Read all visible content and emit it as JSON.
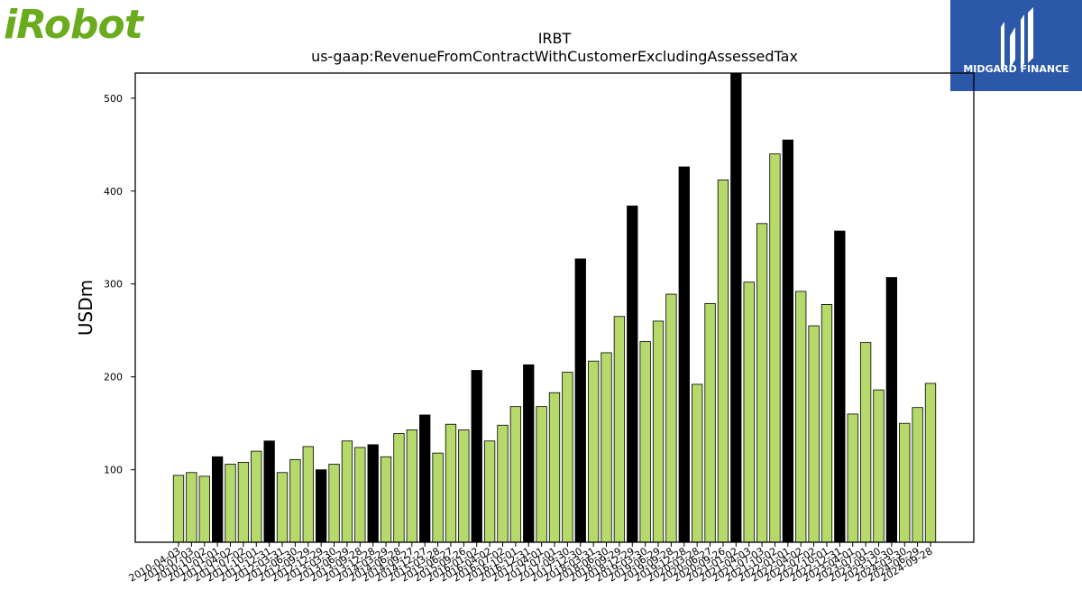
{
  "logos": {
    "left": "iRobot",
    "right": "MIDGARD FINANCE"
  },
  "colors": {
    "bar_fill": "#b5d96a",
    "highlight_fill": "#000000",
    "left_logo": "#6aac1e",
    "right_logo_bg": "#2b58a8"
  },
  "chart_data": {
    "type": "bar",
    "title": "IRBT",
    "subtitle": "us-gaap:RevenueFromContractWithCustomerExcludingAssessedTax",
    "xlabel": "",
    "ylabel": "USDm",
    "ylim": [
      22,
      527
    ],
    "yticks": [
      100,
      200,
      300,
      400,
      500
    ],
    "grid": false,
    "categories": [
      "2010-04-03",
      "2010-07-03",
      "2010-10-02",
      "2011-01-01",
      "2011-04-02",
      "2011-07-02",
      "2011-10-01",
      "2011-12-31",
      "2012-03-31",
      "2012-06-30",
      "2012-09-29",
      "2012-12-29",
      "2013-03-30",
      "2013-06-29",
      "2013-09-28",
      "2013-12-28",
      "2014-03-29",
      "2014-06-28",
      "2014-09-27",
      "2014-12-27",
      "2015-03-28",
      "2015-06-27",
      "2015-09-26",
      "2016-01-02",
      "2016-04-02",
      "2016-07-02",
      "2016-10-01",
      "2016-12-31",
      "2017-04-01",
      "2017-07-01",
      "2017-09-30",
      "2017-12-30",
      "2018-03-31",
      "2018-06-30",
      "2018-09-29",
      "2018-12-29",
      "2019-03-30",
      "2019-06-29",
      "2019-09-28",
      "2019-12-28",
      "2020-03-28",
      "2020-06-27",
      "2020-09-26",
      "2021-01-02",
      "2021-04-03",
      "2021-07-03",
      "2021-10-02",
      "2022-01-01",
      "2022-04-02",
      "2022-07-02",
      "2022-10-01",
      "2022-12-31",
      "2023-04-01",
      "2023-07-01",
      "2023-09-30",
      "2023-12-30",
      "2024-03-30",
      "2024-06-29",
      "2024-09-28"
    ],
    "values": [
      94,
      97,
      93,
      114,
      106,
      108,
      120,
      131,
      97,
      111,
      125,
      100,
      106,
      131,
      124,
      127,
      114,
      139,
      143,
      159,
      118,
      149,
      143,
      207,
      131,
      148,
      168,
      213,
      168,
      183,
      205,
      327,
      217,
      226,
      265,
      384,
      238,
      260,
      289,
      426,
      192,
      279,
      412,
      527,
      302,
      365,
      440,
      455,
      292,
      255,
      278,
      357,
      160,
      237,
      186,
      307,
      150,
      167,
      193
    ],
    "highlight": [
      false,
      false,
      false,
      true,
      false,
      false,
      false,
      true,
      false,
      false,
      false,
      true,
      false,
      false,
      false,
      true,
      false,
      false,
      false,
      true,
      false,
      false,
      false,
      true,
      false,
      false,
      false,
      true,
      false,
      false,
      false,
      true,
      false,
      false,
      false,
      true,
      false,
      false,
      false,
      true,
      false,
      false,
      false,
      true,
      false,
      false,
      false,
      true,
      false,
      false,
      false,
      true,
      false,
      false,
      false,
      true,
      false,
      false,
      false
    ]
  }
}
